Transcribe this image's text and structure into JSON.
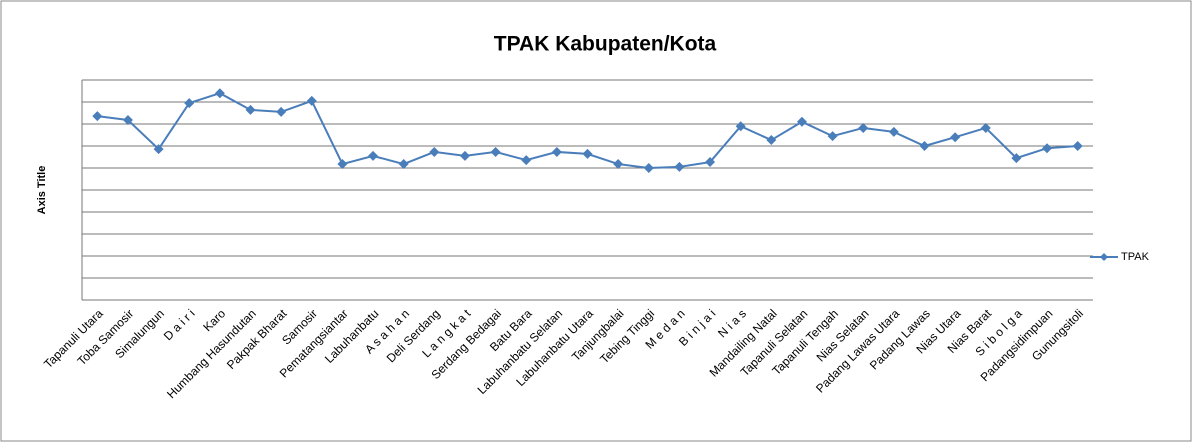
{
  "chart_data": {
    "type": "line",
    "title": "TPAK Kabupaten/Kota",
    "y_label": "Axis Title",
    "categories": [
      "Tapanuli Utara",
      "Toba Samosir",
      "Simalungun",
      "D a i r i",
      "Karo",
      "Humbang Hasundutan",
      "Pakpak Bharat",
      "Samosir",
      "Pematangsiantar",
      "Labuhanbatu",
      "A s a h a n",
      "Deli Serdang",
      "L a n g k a t",
      "Serdang Bedagai",
      "Batu Bara",
      "Labuhanbatu Selatan",
      "Labuhanbatu Utara",
      "Tanjungbalai",
      "Tebing Tinggi",
      "M e d a n",
      "B i n j a i",
      "N i a s",
      "Mandailing Natal",
      "Tapanuli Selatan",
      "Tapanuli Tengah",
      "Nias Selatan",
      "Padang Lawas Utara",
      "Padang Lawas",
      "Nias Utara",
      "Nias Barat",
      "S i b o l g a",
      "Padangsidimpuan",
      "Gunungsitoli"
    ],
    "series": [
      {
        "name": "TPAK",
        "color": "#4a7ebb",
        "values": [
          83.6,
          81.8,
          68.6,
          89.5,
          94,
          86.4,
          85.5,
          90.5,
          61.8,
          65.5,
          61.8,
          67.3,
          65.5,
          67.3,
          63.6,
          67.3,
          66.4,
          61.8,
          60,
          60.5,
          62.7,
          79,
          72.7,
          81,
          74.5,
          78.2,
          76.4,
          70,
          74,
          78.2,
          64.5,
          69,
          70
        ]
      }
    ],
    "ylim": [
      0,
      100
    ],
    "yticks": [
      0,
      10,
      20,
      30,
      40,
      50,
      60,
      70,
      80,
      90,
      100
    ],
    "grid": true,
    "legend": "right"
  }
}
